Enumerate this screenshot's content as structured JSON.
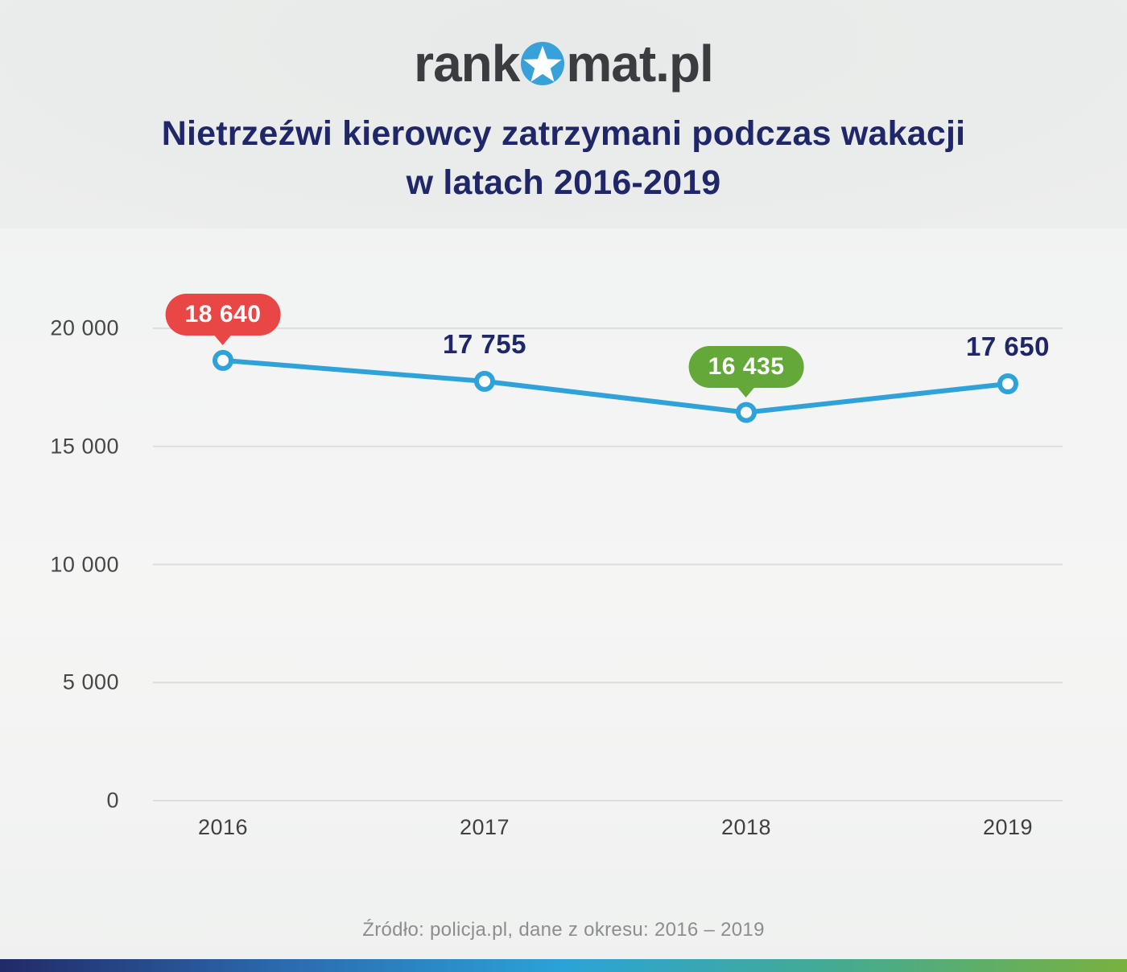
{
  "logo": {
    "part1": "rank",
    "part2": "mat.pl",
    "star_icon_color": "#38a1da",
    "text_color": "#3b3c40"
  },
  "title": {
    "line1": "Nietrzeźwi kierowcy zatrzymani podczas wakacji",
    "line2": "w latach 2016-2019",
    "color": "#1f2769"
  },
  "source": "Źródło: policja.pl, dane z okresu: 2016 – 2019",
  "chart_data": {
    "type": "line",
    "title": "Nietrzeźwi kierowcy zatrzymani podczas wakacji w latach 2016-2019",
    "categories": [
      "2016",
      "2017",
      "2018",
      "2019"
    ],
    "values": [
      18640,
      17755,
      16435,
      17650
    ],
    "xlabel": "",
    "ylabel": "",
    "ylim": [
      0,
      22000
    ],
    "yticks": [
      0,
      5000,
      10000,
      15000,
      20000
    ],
    "ytick_labels": [
      "0",
      "5 000",
      "10 000",
      "15 000",
      "20 000"
    ],
    "grid": true,
    "gridline_color": "#dcdddd",
    "line_color": "#2fa2da",
    "point_fill": "#ffffff",
    "label_color": "#1f2769",
    "point_labels": [
      {
        "text": "18 640",
        "style": "badge",
        "badge_color": "#e94745"
      },
      {
        "text": "17 755",
        "style": "plain"
      },
      {
        "text": "16 435",
        "style": "badge",
        "badge_color": "#64a83a"
      },
      {
        "text": "17 650",
        "style": "plain"
      }
    ],
    "legend": false
  },
  "footer_bar_colors": [
    "#222a68",
    "#2b6aae",
    "#2ba3d8",
    "#45ab8f",
    "#79b13f"
  ]
}
